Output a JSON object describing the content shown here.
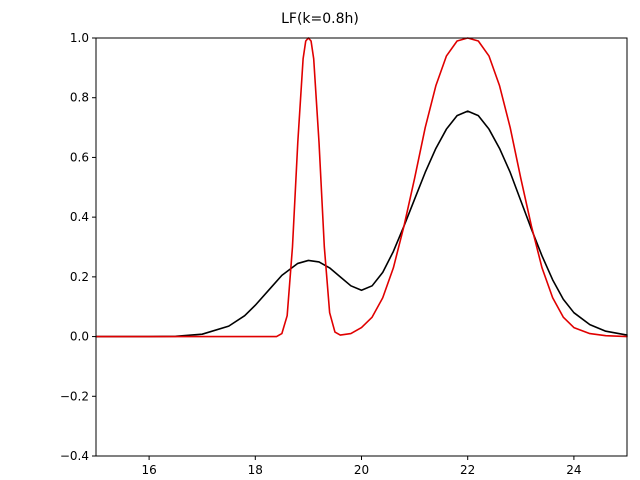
{
  "chart_data": {
    "type": "line",
    "title": "LF(k=0.8h)",
    "xlabel": "",
    "ylabel": "",
    "xlim": [
      15,
      25
    ],
    "ylim": [
      -0.4,
      1.0
    ],
    "xticks": [
      16,
      18,
      20,
      22,
      24
    ],
    "xtick_labels": [
      "16",
      "18",
      "20",
      "22",
      "24"
    ],
    "yticks": [
      -0.4,
      -0.2,
      0.0,
      0.2,
      0.4,
      0.6,
      0.8,
      1.0
    ],
    "ytick_labels": [
      "−0.4",
      "−0.2",
      "0.0",
      "0.2",
      "0.4",
      "0.6",
      "0.8",
      "1.0"
    ],
    "grid": false,
    "legend": false,
    "series": [
      {
        "color": "#000000",
        "x": [
          15.0,
          16.0,
          16.5,
          17.0,
          17.5,
          17.8,
          18.0,
          18.3,
          18.5,
          18.8,
          19.0,
          19.2,
          19.4,
          19.6,
          19.8,
          20.0,
          20.2,
          20.4,
          20.6,
          20.8,
          21.0,
          21.2,
          21.4,
          21.6,
          21.8,
          22.0,
          22.2,
          22.4,
          22.6,
          22.8,
          23.0,
          23.2,
          23.4,
          23.6,
          23.8,
          24.0,
          24.3,
          24.6,
          25.0
        ],
        "y": [
          0.0,
          0.0,
          0.001,
          0.008,
          0.035,
          0.07,
          0.105,
          0.165,
          0.205,
          0.245,
          0.255,
          0.25,
          0.23,
          0.2,
          0.17,
          0.155,
          0.17,
          0.215,
          0.285,
          0.37,
          0.46,
          0.55,
          0.63,
          0.695,
          0.74,
          0.755,
          0.74,
          0.695,
          0.63,
          0.55,
          0.455,
          0.36,
          0.27,
          0.19,
          0.125,
          0.08,
          0.04,
          0.018,
          0.005
        ]
      },
      {
        "color": "#e00000",
        "x": [
          15.0,
          18.0,
          18.4,
          18.5,
          18.6,
          18.7,
          18.8,
          18.9,
          18.95,
          19.0,
          19.05,
          19.1,
          19.2,
          19.3,
          19.4,
          19.5,
          19.6,
          19.8,
          20.0,
          20.2,
          20.4,
          20.6,
          20.8,
          21.0,
          21.2,
          21.4,
          21.6,
          21.8,
          22.0,
          22.2,
          22.4,
          22.6,
          22.8,
          23.0,
          23.2,
          23.4,
          23.6,
          23.8,
          24.0,
          24.3,
          24.6,
          25.0
        ],
        "y": [
          0.0,
          0.0,
          0.0,
          0.01,
          0.07,
          0.3,
          0.65,
          0.93,
          0.99,
          1.0,
          0.99,
          0.93,
          0.65,
          0.3,
          0.08,
          0.015,
          0.005,
          0.01,
          0.03,
          0.065,
          0.13,
          0.23,
          0.37,
          0.53,
          0.7,
          0.84,
          0.94,
          0.99,
          1.0,
          0.99,
          0.94,
          0.84,
          0.7,
          0.53,
          0.37,
          0.23,
          0.13,
          0.065,
          0.03,
          0.01,
          0.003,
          0.0
        ]
      }
    ]
  }
}
